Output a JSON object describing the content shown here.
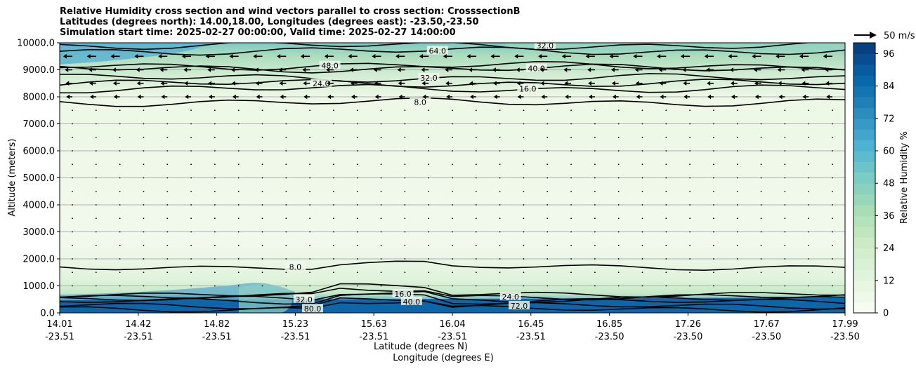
{
  "title_lines": [
    "Relative Humidity cross section and wind vectors parallel to cross section: CrosssectionB",
    "Latitudes (degrees north): 14.00,18.00, Longitudes (degrees east): -23.50,-23.50",
    "Simulation start time: 2025-02-27 00:00:00, Valid time: 2025-02-27 14:00:00"
  ],
  "chart_data": {
    "type": "heatmap",
    "subtype": "filled contour cross section with contour lines and wind vectors",
    "ylabel": "Altitude (meters)",
    "xlabel_lat": "Latitude (degrees N)",
    "xlabel_lon": "Longitude (degrees E)",
    "ylim": [
      0,
      10000
    ],
    "yticks": [
      "0.0",
      "1000.0",
      "2000.0",
      "3000.0",
      "4000.0",
      "5000.0",
      "6000.0",
      "7000.0",
      "8000.0",
      "9000.0",
      "10000.0"
    ],
    "xticks": [
      {
        "lat": "14.01",
        "lon": "-23.51"
      },
      {
        "lat": "14.42",
        "lon": "-23.51"
      },
      {
        "lat": "14.82",
        "lon": "-23.51"
      },
      {
        "lat": "15.23",
        "lon": "-23.51"
      },
      {
        "lat": "15.63",
        "lon": "-23.51"
      },
      {
        "lat": "16.04",
        "lon": "-23.51"
      },
      {
        "lat": "16.45",
        "lon": "-23.51"
      },
      {
        "lat": "16.85",
        "lon": "-23.50"
      },
      {
        "lat": "17.26",
        "lon": "-23.50"
      },
      {
        "lat": "17.67",
        "lon": "-23.50"
      },
      {
        "lat": "17.99",
        "lon": "-23.50"
      }
    ],
    "grid": "horizontal",
    "colorbar": {
      "label": "Relative Humidity %",
      "ticks": [
        "0",
        "12",
        "24",
        "36",
        "48",
        "60",
        "72",
        "84",
        "96"
      ],
      "range": [
        0,
        100
      ],
      "levels": 25,
      "colormap": "GnBu"
    },
    "quiver_key": {
      "label": "50 m/s",
      "value": 50
    },
    "contour_lines": [
      {
        "label": "8.0",
        "altitude": 1700
      },
      {
        "label": "16.0",
        "altitude": 700
      },
      {
        "label": "24.0",
        "altitude": 600
      },
      {
        "label": "32.0",
        "altitude": 500
      },
      {
        "label": "40.0",
        "altitude": 420
      },
      {
        "label": "72.0",
        "altitude": 260
      },
      {
        "label": "80.0",
        "altitude": 150
      },
      {
        "label": "8.0",
        "altitude": 7800
      },
      {
        "label": "16.0",
        "altitude": 8300
      },
      {
        "label": "24.0",
        "altitude": 8500
      },
      {
        "label": "32.0",
        "altitude": 8700
      },
      {
        "label": "40.0",
        "altitude": 9050
      },
      {
        "label": "48.0",
        "altitude": 9150
      },
      {
        "label": "64.0",
        "altitude": 9700
      },
      {
        "label": "32.0",
        "altitude": 9900
      }
    ],
    "wind_rows": [
      {
        "altitude": 9500,
        "u": -17
      },
      {
        "altitude": 9000,
        "u": -12
      },
      {
        "altitude": 8500,
        "u": -10
      },
      {
        "altitude": 8000,
        "u": -8
      },
      {
        "altitude": 7500,
        "u": -4
      },
      {
        "altitude": 7000,
        "u": -2
      },
      {
        "altitude": 6500,
        "u": -1
      },
      {
        "altitude": 1000,
        "u": 2
      }
    ],
    "colors": {
      "contour": "#000000",
      "low": "#f7fcf0",
      "mid": "#a8ddb5",
      "high": "#0868ac",
      "gridline": "#b0b0b0"
    }
  }
}
